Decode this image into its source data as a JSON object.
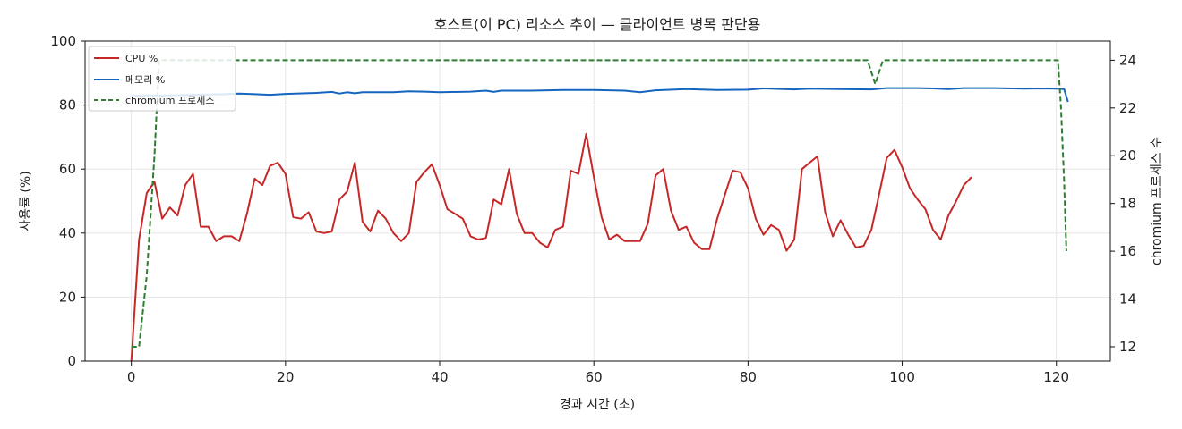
{
  "chart_data": {
    "type": "line",
    "title": "호스트(이 PC) 리소스 추이 — 클라이언트 병목 판단용",
    "xlabel": "경과 시간 (초)",
    "ylabel": "사용률 (%)",
    "y2label": "chromium 프로세스 수",
    "xlim": [
      -6,
      127
    ],
    "ylim": [
      0,
      100
    ],
    "y2lim": [
      11.4,
      24.8
    ],
    "x_ticks": [
      0,
      20,
      40,
      60,
      80,
      100,
      120
    ],
    "y_ticks": [
      0,
      20,
      40,
      60,
      80,
      100
    ],
    "y2_ticks": [
      12,
      14,
      16,
      18,
      20,
      22,
      24
    ],
    "grid": true,
    "legend_position": "upper-left",
    "series": [
      {
        "name": "CPU %",
        "axis": "left",
        "color": "#c62828",
        "style": "solid",
        "points": [
          [
            0,
            0
          ],
          [
            1,
            38
          ],
          [
            2,
            52.5
          ],
          [
            3,
            56
          ],
          [
            4,
            44.5
          ],
          [
            5,
            48
          ],
          [
            6,
            45.5
          ],
          [
            7,
            55
          ],
          [
            8,
            58.5
          ],
          [
            9,
            42
          ],
          [
            10,
            42
          ],
          [
            11,
            37.5
          ],
          [
            12,
            39
          ],
          [
            13,
            39
          ],
          [
            14,
            37.5
          ],
          [
            15,
            46
          ],
          [
            16,
            57
          ],
          [
            17,
            55
          ],
          [
            18,
            61
          ],
          [
            19,
            62
          ],
          [
            20,
            58.5
          ],
          [
            21,
            45
          ],
          [
            22,
            44.5
          ],
          [
            23,
            46.5
          ],
          [
            24,
            40.5
          ],
          [
            25,
            40
          ],
          [
            26,
            40.5
          ],
          [
            27,
            50.5
          ],
          [
            28,
            53
          ],
          [
            29,
            62
          ],
          [
            30,
            43.5
          ],
          [
            31,
            40.5
          ],
          [
            32,
            47
          ],
          [
            33,
            44.5
          ],
          [
            34,
            40
          ],
          [
            35,
            37.5
          ],
          [
            36,
            40
          ],
          [
            37,
            56
          ],
          [
            38,
            59
          ],
          [
            39,
            61.5
          ],
          [
            40,
            55
          ],
          [
            41,
            47.5
          ],
          [
            42,
            46
          ],
          [
            43,
            44.5
          ],
          [
            44,
            39
          ],
          [
            45,
            38
          ],
          [
            46,
            38.5
          ],
          [
            47,
            50.5
          ],
          [
            48,
            49
          ],
          [
            49,
            60
          ],
          [
            50,
            46
          ],
          [
            51,
            40
          ],
          [
            52,
            40
          ],
          [
            53,
            37
          ],
          [
            54,
            35.5
          ],
          [
            55,
            41
          ],
          [
            56,
            42
          ],
          [
            57,
            59.5
          ],
          [
            58,
            58.5
          ],
          [
            59,
            71
          ],
          [
            60,
            57.5
          ],
          [
            61,
            45
          ],
          [
            62,
            38
          ],
          [
            63,
            39.5
          ],
          [
            64,
            37.5
          ],
          [
            65,
            37.5
          ],
          [
            66,
            37.5
          ],
          [
            67,
            43
          ],
          [
            68,
            58
          ],
          [
            69,
            60
          ],
          [
            70,
            47
          ],
          [
            71,
            41
          ],
          [
            72,
            42
          ],
          [
            73,
            37
          ],
          [
            74,
            35
          ],
          [
            75,
            35
          ],
          [
            76,
            44.5
          ],
          [
            77,
            52
          ],
          [
            78,
            59.5
          ],
          [
            79,
            59
          ],
          [
            80,
            54
          ],
          [
            81,
            44.5
          ],
          [
            82,
            39.5
          ],
          [
            83,
            42.5
          ],
          [
            84,
            41
          ],
          [
            85,
            34.5
          ],
          [
            86,
            38
          ],
          [
            87,
            60
          ],
          [
            88,
            62
          ],
          [
            89,
            64
          ],
          [
            90,
            46.5
          ],
          [
            91,
            39
          ],
          [
            92,
            44
          ],
          [
            93,
            39.5
          ],
          [
            94,
            35.5
          ],
          [
            95,
            36
          ],
          [
            96,
            41
          ],
          [
            97,
            52
          ],
          [
            98,
            63.5
          ],
          [
            99,
            66
          ],
          [
            100,
            60.5
          ],
          [
            101,
            54
          ],
          [
            102,
            50.5
          ],
          [
            103,
            47.5
          ],
          [
            104,
            41
          ],
          [
            105,
            38
          ],
          [
            106,
            45.5
          ],
          [
            107,
            50
          ],
          [
            108,
            55
          ],
          [
            109,
            57.5
          ]
        ]
      },
      {
        "name": "메모리 %",
        "axis": "left",
        "color": "#1565c0",
        "style": "solid",
        "points": [
          [
            0,
            83
          ],
          [
            4,
            83
          ],
          [
            8,
            83.2
          ],
          [
            12,
            83.4
          ],
          [
            14,
            83.6
          ],
          [
            16,
            83.4
          ],
          [
            18,
            83.2
          ],
          [
            20,
            83.5
          ],
          [
            24,
            83.8
          ],
          [
            26,
            84.1
          ],
          [
            27,
            83.6
          ],
          [
            28,
            84
          ],
          [
            29,
            83.7
          ],
          [
            30,
            84
          ],
          [
            34,
            84
          ],
          [
            36,
            84.3
          ],
          [
            38,
            84.2
          ],
          [
            40,
            84
          ],
          [
            44,
            84.2
          ],
          [
            46,
            84.5
          ],
          [
            47,
            84.1
          ],
          [
            48,
            84.5
          ],
          [
            52,
            84.5
          ],
          [
            56,
            84.7
          ],
          [
            60,
            84.7
          ],
          [
            64,
            84.5
          ],
          [
            66,
            84
          ],
          [
            68,
            84.6
          ],
          [
            72,
            85
          ],
          [
            76,
            84.7
          ],
          [
            80,
            84.8
          ],
          [
            82,
            85.2
          ],
          [
            86,
            84.9
          ],
          [
            88,
            85.1
          ],
          [
            92,
            85
          ],
          [
            96,
            84.9
          ],
          [
            98,
            85.3
          ],
          [
            102,
            85.3
          ],
          [
            104,
            85.2
          ],
          [
            106,
            85
          ],
          [
            108,
            85.3
          ],
          [
            112,
            85.3
          ],
          [
            116,
            85.1
          ],
          [
            118,
            85.2
          ],
          [
            120,
            85.1
          ],
          [
            121,
            85
          ],
          [
            121.5,
            81
          ]
        ]
      },
      {
        "name": "chromium 프로세스",
        "axis": "right",
        "color": "#2e7d32",
        "style": "dashed",
        "points": [
          [
            0,
            12
          ],
          [
            1,
            12
          ],
          [
            2,
            15
          ],
          [
            3,
            20
          ],
          [
            3.6,
            24
          ],
          [
            95.5,
            24
          ],
          [
            96.5,
            23
          ],
          [
            97.5,
            24
          ],
          [
            120.2,
            24
          ],
          [
            120.6,
            22
          ],
          [
            121,
            19
          ],
          [
            121.3,
            16
          ]
        ]
      }
    ]
  }
}
